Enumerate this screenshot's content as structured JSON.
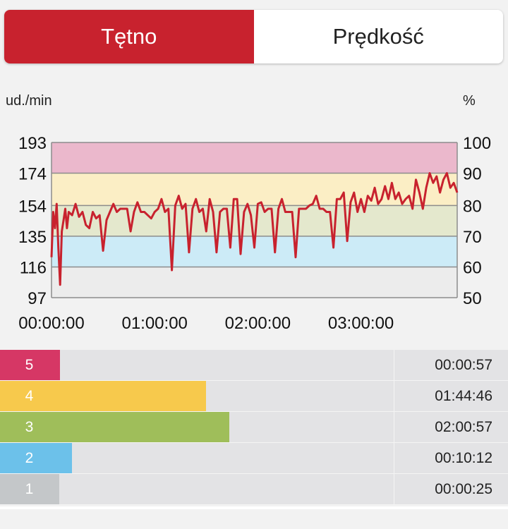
{
  "tabs": [
    {
      "label": "Tętno",
      "active": true
    },
    {
      "label": "Prędkość",
      "active": false
    }
  ],
  "colors": {
    "accent": "#c8222e",
    "zone5": "#d63765",
    "zone4": "#f7c94c",
    "zone3": "#9fbe5a",
    "zone2": "#6cc1ea",
    "zone1": "#c4c7c9",
    "line": "#c8222e"
  },
  "chart_data": {
    "type": "line",
    "left_unit": "ud./min",
    "right_unit": "%",
    "left_ticks": [
      "193",
      "174",
      "154",
      "135",
      "116",
      "97"
    ],
    "right_ticks": [
      "100",
      "90",
      "80",
      "70",
      "60",
      "50"
    ],
    "x_ticks": [
      "00:00:00",
      "01:00:00",
      "02:00:00",
      "03:00:00"
    ],
    "x_tick_minutes": [
      0,
      60,
      120,
      180
    ],
    "xlim_minutes": [
      0,
      236
    ],
    "ylim": [
      97,
      193
    ],
    "bands": [
      {
        "zone": 5,
        "from": 174,
        "to": 193,
        "color": "#ebb8cc"
      },
      {
        "zone": 4,
        "from": 154,
        "to": 174,
        "color": "#fbeec5"
      },
      {
        "zone": 3,
        "from": 135,
        "to": 154,
        "color": "#e4e8cd"
      },
      {
        "zone": 2,
        "from": 116,
        "to": 135,
        "color": "#ccebf7"
      },
      {
        "zone": 1,
        "from": 97,
        "to": 116,
        "color": "#ececec"
      }
    ],
    "series": [
      {
        "x": [
          0,
          1,
          2,
          3,
          4,
          5,
          6,
          7,
          8,
          9,
          10,
          12,
          14,
          16,
          18,
          20,
          22,
          24,
          26,
          28,
          30,
          32,
          34,
          36,
          38,
          40,
          42,
          44,
          46,
          48,
          50,
          52,
          54,
          56,
          58,
          60,
          62,
          64,
          66,
          68,
          70,
          72,
          74,
          76,
          78,
          80,
          82,
          84,
          86,
          88,
          90,
          92,
          94,
          96,
          98,
          100,
          102,
          104,
          106,
          108,
          110,
          112,
          114,
          116,
          118,
          120,
          122,
          124,
          126,
          128,
          130,
          132,
          134,
          136,
          138,
          140,
          142,
          144,
          146,
          148,
          150,
          152,
          154,
          156,
          158,
          160,
          162,
          164,
          166,
          168,
          170,
          172,
          174,
          176,
          178,
          180,
          182,
          184,
          186,
          188,
          190,
          192,
          194,
          196,
          198,
          200,
          202,
          204,
          206,
          208,
          210,
          212,
          214,
          216,
          218,
          220,
          222,
          224,
          226,
          228,
          230,
          232,
          234,
          236
        ],
        "y": [
          122,
          150,
          140,
          155,
          128,
          105,
          138,
          145,
          152,
          140,
          150,
          148,
          155,
          147,
          150,
          142,
          140,
          150,
          146,
          148,
          126,
          145,
          150,
          155,
          150,
          152,
          152,
          152,
          138,
          150,
          156,
          150,
          150,
          148,
          146,
          150,
          152,
          158,
          150,
          152,
          114,
          154,
          160,
          152,
          155,
          125,
          152,
          158,
          150,
          152,
          138,
          158,
          150,
          125,
          150,
          152,
          152,
          128,
          158,
          158,
          124,
          150,
          155,
          148,
          128,
          155,
          156,
          150,
          152,
          152,
          125,
          152,
          158,
          150,
          150,
          150,
          122,
          152,
          152,
          152,
          154,
          155,
          160,
          152,
          152,
          150,
          150,
          128,
          158,
          158,
          162,
          132,
          156,
          162,
          150,
          158,
          150,
          160,
          157,
          165,
          155,
          158,
          166,
          158,
          168,
          158,
          162,
          155,
          158,
          160,
          152,
          170,
          162,
          152,
          165,
          174,
          168,
          172,
          162,
          170,
          174,
          165,
          168,
          162
        ]
      }
    ]
  },
  "zones": [
    {
      "num": "5",
      "time": "00:00:57",
      "fraction": 0.004,
      "color": "#d63765"
    },
    {
      "num": "4",
      "time": "01:44:46",
      "fraction": 0.44,
      "color": "#f7c94c"
    },
    {
      "num": "3",
      "time": "02:00:57",
      "fraction": 0.51,
      "color": "#9fbe5a"
    },
    {
      "num": "2",
      "time": "00:10:12",
      "fraction": 0.04,
      "color": "#6cc1ea"
    },
    {
      "num": "1",
      "time": "00:00:25",
      "fraction": 0.002,
      "color": "#c4c7c9"
    }
  ]
}
